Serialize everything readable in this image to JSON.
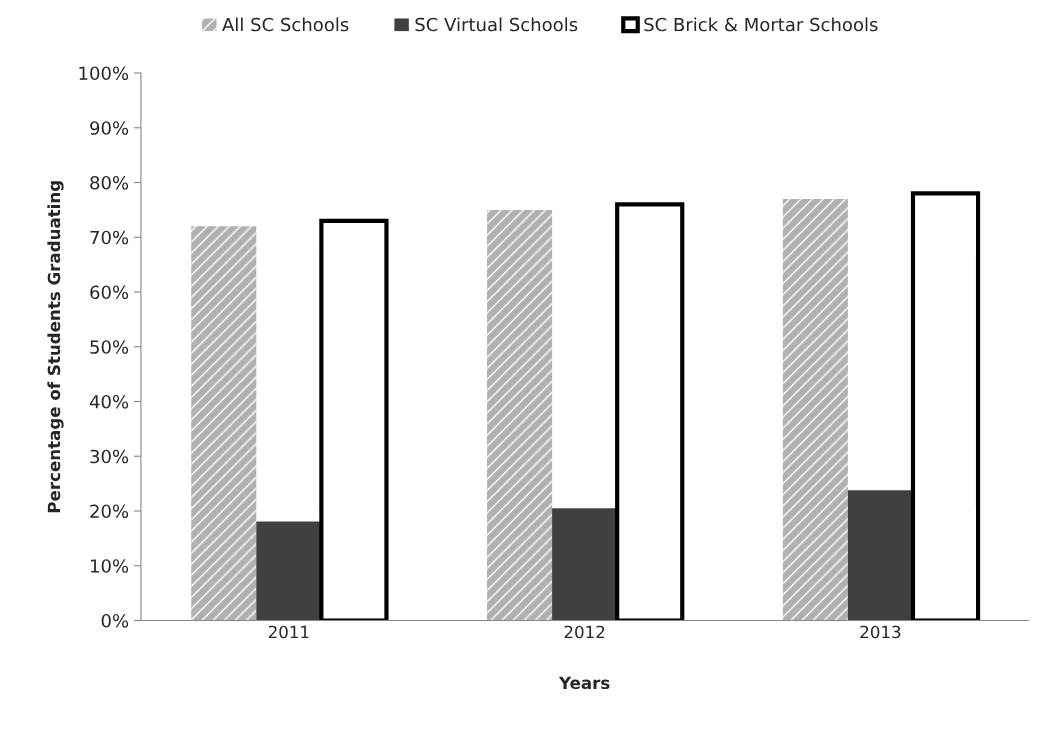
{
  "chart_data": {
    "type": "bar",
    "xlabel": "Years",
    "ylabel": "Percentage of Students Graduating",
    "categories": [
      "2011",
      "2012",
      "2013"
    ],
    "series": [
      {
        "name": "All SC Schools",
        "color": "#b0b0b0",
        "values": [
          72,
          75,
          77
        ]
      },
      {
        "name": "SC Virtual Schools",
        "color": "#404040",
        "values": [
          18.1,
          20.5,
          23.8
        ]
      },
      {
        "name": "SC Brick & Mortar Schools",
        "color": "#ffffff",
        "values": [
          73,
          76,
          78
        ]
      }
    ],
    "ylim": [
      0,
      100
    ],
    "yticks": [
      {
        "value": 0,
        "label": "0%"
      },
      {
        "value": 10,
        "label": "10%"
      },
      {
        "value": 20,
        "label": "20%"
      },
      {
        "value": 30,
        "label": "30%"
      },
      {
        "value": 40,
        "label": "40%"
      },
      {
        "value": 50,
        "label": "50%"
      },
      {
        "value": 60,
        "label": "60%"
      },
      {
        "value": 70,
        "label": "70%"
      },
      {
        "value": 80,
        "label": "80%"
      },
      {
        "value": 90,
        "label": "90%"
      },
      {
        "value": 100,
        "label": "100%"
      }
    ],
    "grid": false,
    "legend": "top"
  }
}
